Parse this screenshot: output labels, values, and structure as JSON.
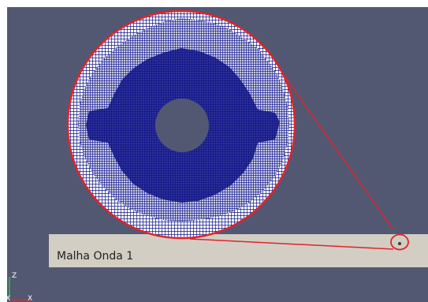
{
  "domain_label": "Malha Onda 1",
  "axes": {
    "y_label": "Z",
    "x_label": "X"
  },
  "colors": {
    "background": "#535872",
    "domain": "#d2cec4",
    "mesh": "#13178a",
    "mesh_dense": "#0b0f85",
    "hole": "#535872",
    "zoom_outline": "#e2232a",
    "axis_y": "#22b14c",
    "axis_x": "#e2232a"
  },
  "icons": [
    "zoom-magnifier-circle",
    "mesh-hole",
    "zoom-marker-circle",
    "orientation-axes"
  ]
}
